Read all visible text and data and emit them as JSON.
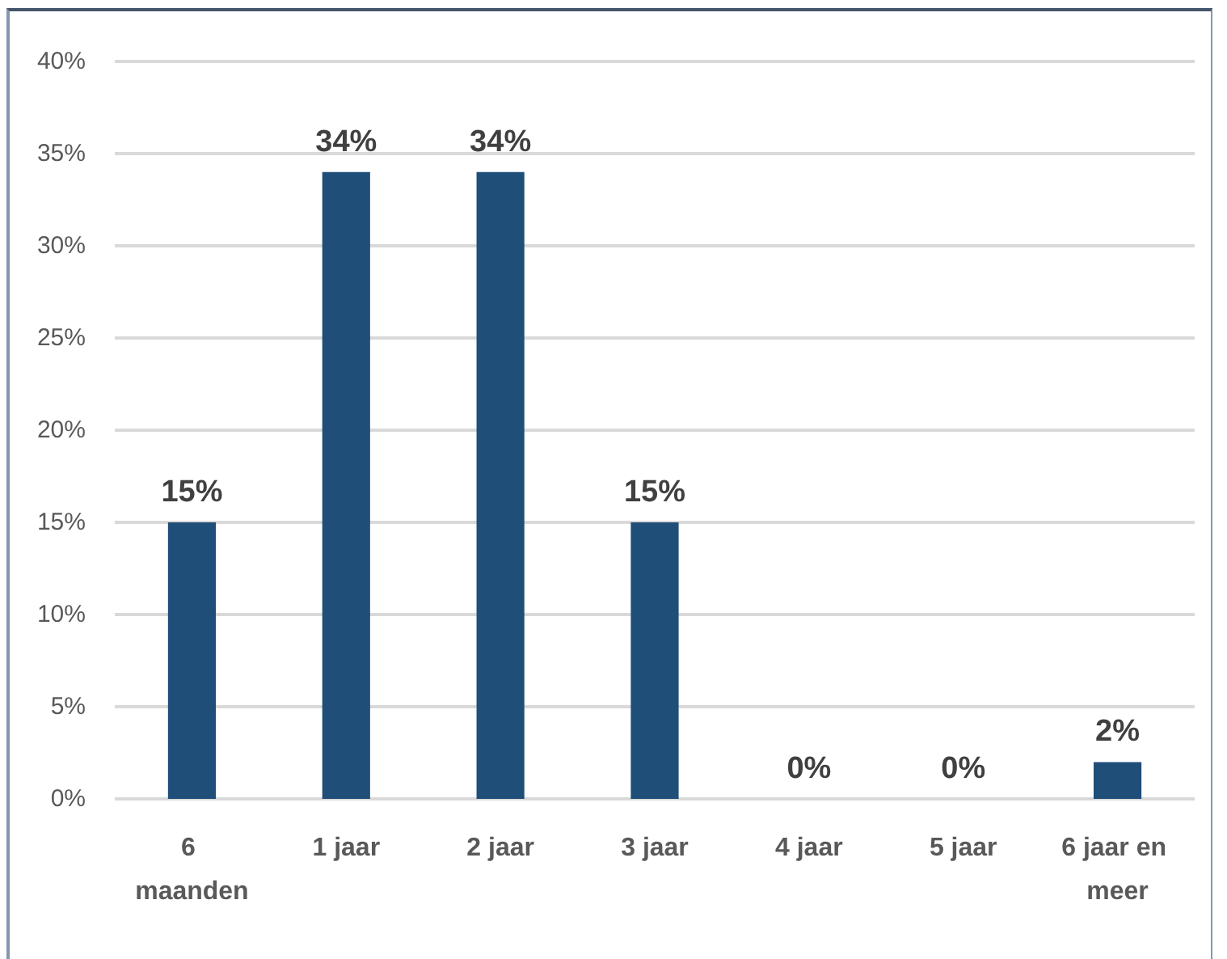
{
  "chart_data": {
    "type": "bar",
    "categories": [
      "6 maanden",
      "1 jaar",
      "2 jaar",
      "3 jaar",
      "4 jaar",
      "5 jaar",
      "6 jaar en meer"
    ],
    "values": [
      15,
      34,
      34,
      15,
      0,
      0,
      2
    ],
    "value_labels": [
      "15%",
      "34%",
      "34%",
      "15%",
      "0%",
      "0%",
      "2%"
    ],
    "color": "#1f4e79",
    "ylim": [
      0,
      40
    ],
    "yticks": [
      {
        "value": 0,
        "label": "0%"
      },
      {
        "value": 5,
        "label": "5%"
      },
      {
        "value": 10,
        "label": "10%"
      },
      {
        "value": 15,
        "label": "15%"
      },
      {
        "value": 20,
        "label": "20%"
      },
      {
        "value": 25,
        "label": "25%"
      },
      {
        "value": 30,
        "label": "30%"
      },
      {
        "value": 35,
        "label": "35%"
      },
      {
        "value": 40,
        "label": "40%"
      }
    ],
    "grid": "y"
  }
}
